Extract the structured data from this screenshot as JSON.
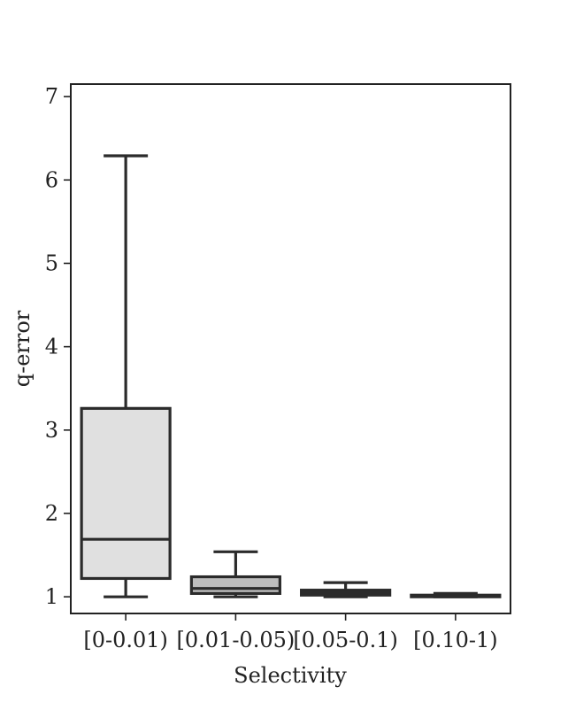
{
  "chart_data": {
    "type": "box",
    "xlabel": "Selectivity",
    "ylabel": "q-error",
    "ylim": [
      0.8,
      7.15
    ],
    "yticks": [
      1,
      2,
      3,
      4,
      5,
      6,
      7
    ],
    "grid": false,
    "categories": [
      "[0-0.01)",
      "[0.01-0.05)",
      "[0.05-0.1)",
      "[0.10-1)"
    ],
    "boxes": [
      {
        "whisker_low": 1.0,
        "q1": 1.22,
        "median": 1.69,
        "q3": 3.26,
        "whisker_high": 6.29,
        "color": "#e0e0e0"
      },
      {
        "whisker_low": 1.0,
        "q1": 1.04,
        "median": 1.1,
        "q3": 1.24,
        "whisker_high": 1.54,
        "color": "#bdbdbd"
      },
      {
        "whisker_low": 1.0,
        "q1": 1.02,
        "median": 1.05,
        "q3": 1.08,
        "whisker_high": 1.17,
        "color": "#8c8c8c"
      },
      {
        "whisker_low": 1.0,
        "q1": 1.0,
        "median": 1.01,
        "q3": 1.02,
        "whisker_high": 1.04,
        "color": "#6e6e6e"
      }
    ]
  }
}
